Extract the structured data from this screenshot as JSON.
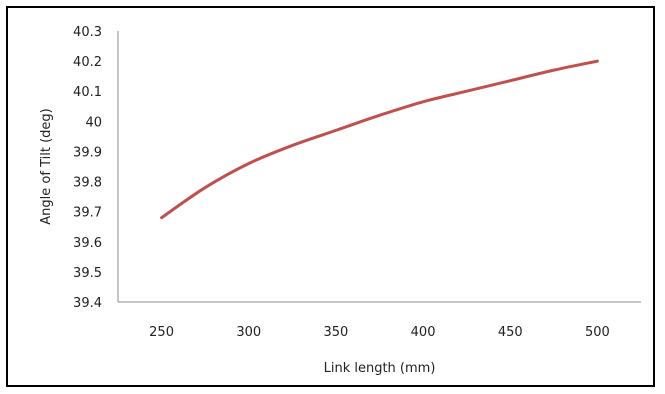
{
  "chart_data": {
    "type": "line",
    "title": "",
    "xlabel": "Link length (mm)",
    "ylabel": "Angle of Tilt (deg)",
    "xlim": [
      225,
      525
    ],
    "ylim": [
      39.4,
      40.3
    ],
    "x_ticks": [
      "250",
      "300",
      "350",
      "400",
      "450",
      "500"
    ],
    "y_ticks": [
      "40.3",
      "40.2",
      "40.1",
      "40",
      "39.9",
      "39.8",
      "39.7",
      "39.6",
      "39.5",
      "39.4"
    ],
    "grid": false,
    "legend": "none",
    "series": [
      {
        "color": "#c0504d",
        "x": [
          250,
          275,
          300,
          325,
          350,
          375,
          400,
          425,
          450,
          475,
          500
        ],
        "y": [
          39.68,
          39.78,
          39.86,
          39.92,
          39.97,
          40.02,
          40.065,
          40.1,
          40.135,
          40.17,
          40.2
        ]
      }
    ]
  }
}
